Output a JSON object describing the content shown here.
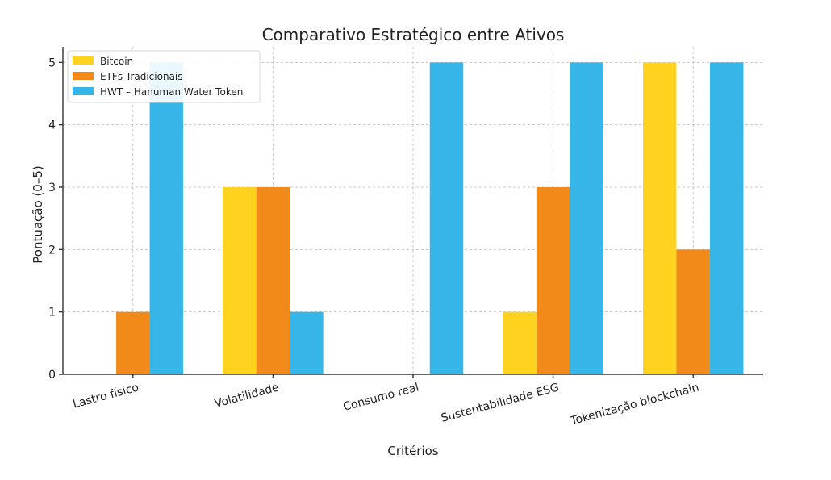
{
  "chart_data": {
    "type": "bar",
    "title": "Comparativo Estratégico entre Ativos",
    "xlabel": "Critérios",
    "ylabel": "Pontuação (0–5)",
    "categories": [
      "Lastro físico",
      "Volatilidade",
      "Consumo real",
      "Sustentabilidade ESG",
      "Tokenização blockchain"
    ],
    "yticks": [
      "0",
      "1",
      "2",
      "3",
      "4",
      "5"
    ],
    "ylim": [
      0,
      5.25
    ],
    "grid": true,
    "legend_position": "top-left",
    "series": [
      {
        "name": "Bitcoin",
        "color": "#FFD21F",
        "values": [
          0,
          3,
          0,
          1,
          5
        ]
      },
      {
        "name": "ETFs Tradicionais",
        "color": "#F28A1A",
        "values": [
          1,
          3,
          0,
          3,
          2
        ]
      },
      {
        "name": "HWT – Hanuman Water Token",
        "color": "#36B6E8",
        "values": [
          5,
          1,
          5,
          5,
          5
        ]
      }
    ]
  }
}
